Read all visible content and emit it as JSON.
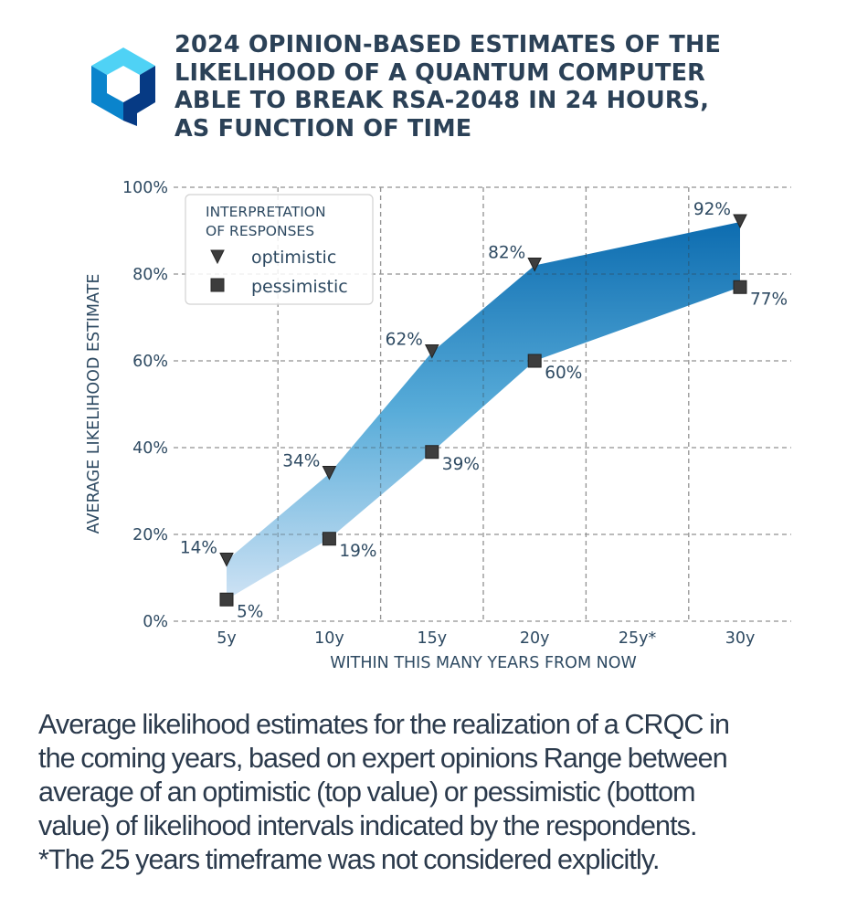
{
  "header": {
    "logo": "quantum-cube-logo",
    "title_lines": [
      "2024 OPINION-BASED ESTIMATES OF THE",
      "LIKELIHOOD OF A QUANTUM COMPUTER",
      "ABLE TO BREAK RSA-2048 IN 24 HOURS,",
      "AS FUNCTION OF TIME"
    ]
  },
  "colors": {
    "text": "#2e4a62",
    "marker": "#3d3d3d",
    "fill_top": "#0868ad",
    "fill_mid": "#58acd9",
    "fill_bottom": "#d6e6f6",
    "grid": "#c8c8c8",
    "logo_light": "#4fd2f5",
    "logo_mid": "#0a84cc",
    "logo_dark": "#063a84"
  },
  "chart_data": {
    "type": "area",
    "title": "2024 OPINION-BASED ESTIMATES OF THE LIKELIHOOD OF A QUANTUM COMPUTER ABLE TO BREAK RSA-2048 IN 24 HOURS, AS FUNCTION OF TIME",
    "xlabel": "WITHIN THIS MANY YEARS FROM NOW",
    "ylabel": "AVERAGE LIKELIHOOD ESTIMATE",
    "categories": [
      "5y",
      "10y",
      "15y",
      "20y",
      "25y*",
      "30y"
    ],
    "x": [
      5,
      10,
      15,
      20,
      25,
      30
    ],
    "xlim": [
      2.5,
      32.5
    ],
    "ylim": [
      0,
      100
    ],
    "yticks": [
      0,
      20,
      40,
      60,
      80,
      100
    ],
    "ytick_labels": [
      "0%",
      "20%",
      "40%",
      "60%",
      "80%",
      "100%"
    ],
    "grid": true,
    "legend": {
      "title_lines": [
        "INTERPRETATION",
        "OF RESPONSES"
      ],
      "placement": "top-left",
      "entries": [
        {
          "label": "optimistic",
          "marker": "triangle-down"
        },
        {
          "label": "pessimistic",
          "marker": "square"
        }
      ]
    },
    "series": [
      {
        "name": "optimistic",
        "marker": "triangle-down",
        "x": [
          5,
          10,
          15,
          20,
          30
        ],
        "values": [
          14,
          34,
          62,
          82,
          92
        ],
        "labels": [
          "14%",
          "34%",
          "62%",
          "82%",
          "92%"
        ]
      },
      {
        "name": "pessimistic",
        "marker": "square",
        "x": [
          5,
          10,
          15,
          20,
          30
        ],
        "values": [
          5,
          19,
          39,
          60,
          77
        ],
        "labels": [
          "5%",
          "19%",
          "39%",
          "60%",
          "77%"
        ]
      }
    ],
    "fill_between": [
      "optimistic",
      "pessimistic"
    ]
  },
  "caption_lines": [
    "Average likelihood estimates for the realization of a CRQC in",
    "the coming years, based on expert opinions Range between",
    "average of an optimistic (top value) or pessimistic (bottom",
    "value) of likelihood intervals indicated by the respondents.",
    "*The 25 years timeframe was not considered explicitly."
  ]
}
